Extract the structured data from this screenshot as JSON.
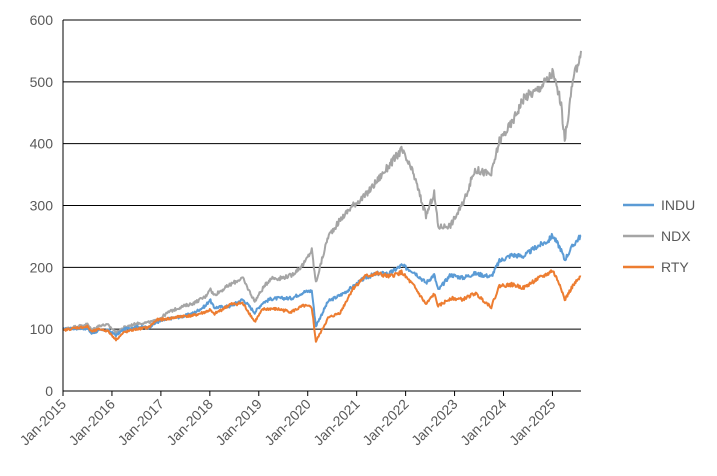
{
  "chart_data": {
    "type": "line",
    "title": "",
    "xlabel": "",
    "ylabel": "",
    "ylim": [
      0,
      600
    ],
    "y_ticks": [
      "0",
      "100",
      "200",
      "300",
      "400",
      "500",
      "600"
    ],
    "x_ticks": [
      "Jan-2015",
      "Jan-2016",
      "Jan-2017",
      "Jan-2018",
      "Jan-2019",
      "Jan-2020",
      "Jan-2021",
      "Jan-2022",
      "Jan-2023",
      "Jan-2024",
      "Jan-2025"
    ],
    "x_range": [
      "2015-01-01",
      "2025-08-01"
    ],
    "grid": "horizontal",
    "legend_position": "right",
    "colors": {
      "INDU": "#5b9bd5",
      "NDX": "#a5a5a5",
      "RTY": "#ed7d31",
      "grid": "#000000",
      "axis_text": "#595959"
    },
    "series": [
      {
        "name": "INDU",
        "points": [
          [
            "2015-01",
            100
          ],
          [
            "2015-04",
            101
          ],
          [
            "2015-07",
            101
          ],
          [
            "2015-08",
            93
          ],
          [
            "2015-10",
            98
          ],
          [
            "2015-12",
            99
          ],
          [
            "2016-02",
            90
          ],
          [
            "2016-04",
            100
          ],
          [
            "2016-07",
            104
          ],
          [
            "2016-10",
            103
          ],
          [
            "2016-12",
            111
          ],
          [
            "2017-03",
            117
          ],
          [
            "2017-06",
            120
          ],
          [
            "2017-09",
            126
          ],
          [
            "2017-12",
            138
          ],
          [
            "2018-01",
            148
          ],
          [
            "2018-02",
            135
          ],
          [
            "2018-06",
            137
          ],
          [
            "2018-09",
            148
          ],
          [
            "2018-10",
            142
          ],
          [
            "2018-12",
            127
          ],
          [
            "2019-02",
            143
          ],
          [
            "2019-04",
            149
          ],
          [
            "2019-06",
            150
          ],
          [
            "2019-09",
            150
          ],
          [
            "2019-12",
            160
          ],
          [
            "2020-02",
            162
          ],
          [
            "2020-03",
            105
          ],
          [
            "2020-06",
            145
          ],
          [
            "2020-09",
            155
          ],
          [
            "2020-12",
            168
          ],
          [
            "2021-03",
            183
          ],
          [
            "2021-06",
            190
          ],
          [
            "2021-09",
            190
          ],
          [
            "2021-12",
            203
          ],
          [
            "2022-03",
            193
          ],
          [
            "2022-06",
            175
          ],
          [
            "2022-08",
            188
          ],
          [
            "2022-09",
            163
          ],
          [
            "2022-12",
            188
          ],
          [
            "2023-03",
            183
          ],
          [
            "2023-06",
            190
          ],
          [
            "2023-10",
            185
          ],
          [
            "2023-12",
            210
          ],
          [
            "2024-03",
            220
          ],
          [
            "2024-06",
            218
          ],
          [
            "2024-09",
            233
          ],
          [
            "2024-12",
            243
          ],
          [
            "2025-01",
            252
          ],
          [
            "2025-03",
            230
          ],
          [
            "2025-04",
            212
          ],
          [
            "2025-06",
            235
          ],
          [
            "2025-08",
            252
          ]
        ]
      },
      {
        "name": "NDX",
        "points": [
          [
            "2015-01",
            100
          ],
          [
            "2015-04",
            104
          ],
          [
            "2015-07",
            108
          ],
          [
            "2015-08",
            99
          ],
          [
            "2015-10",
            106
          ],
          [
            "2015-12",
            107
          ],
          [
            "2016-02",
            95
          ],
          [
            "2016-04",
            103
          ],
          [
            "2016-07",
            109
          ],
          [
            "2016-10",
            111
          ],
          [
            "2016-12",
            114
          ],
          [
            "2017-03",
            128
          ],
          [
            "2017-06",
            136
          ],
          [
            "2017-09",
            142
          ],
          [
            "2017-12",
            153
          ],
          [
            "2018-01",
            166
          ],
          [
            "2018-02",
            155
          ],
          [
            "2018-06",
            172
          ],
          [
            "2018-09",
            183
          ],
          [
            "2018-10",
            170
          ],
          [
            "2018-12",
            145
          ],
          [
            "2019-02",
            166
          ],
          [
            "2019-04",
            183
          ],
          [
            "2019-06",
            182
          ],
          [
            "2019-09",
            187
          ],
          [
            "2019-12",
            205
          ],
          [
            "2020-02",
            228
          ],
          [
            "2020-03",
            175
          ],
          [
            "2020-06",
            250
          ],
          [
            "2020-09",
            277
          ],
          [
            "2020-12",
            300
          ],
          [
            "2021-03",
            315
          ],
          [
            "2021-06",
            340
          ],
          [
            "2021-09",
            365
          ],
          [
            "2021-12",
            390
          ],
          [
            "2022-03",
            350
          ],
          [
            "2022-06",
            283
          ],
          [
            "2022-08",
            320
          ],
          [
            "2022-09",
            265
          ],
          [
            "2022-12",
            268
          ],
          [
            "2023-03",
            302
          ],
          [
            "2023-06",
            358
          ],
          [
            "2023-10",
            350
          ],
          [
            "2023-12",
            405
          ],
          [
            "2024-03",
            433
          ],
          [
            "2024-06",
            475
          ],
          [
            "2024-09",
            485
          ],
          [
            "2024-12",
            505
          ],
          [
            "2025-01",
            515
          ],
          [
            "2025-03",
            470
          ],
          [
            "2025-04",
            405
          ],
          [
            "2025-06",
            500
          ],
          [
            "2025-08",
            550
          ]
        ]
      },
      {
        "name": "RTY",
        "points": [
          [
            "2015-01",
            98
          ],
          [
            "2015-04",
            102
          ],
          [
            "2015-07",
            104
          ],
          [
            "2015-08",
            96
          ],
          [
            "2015-10",
            100
          ],
          [
            "2015-12",
            97
          ],
          [
            "2016-02",
            83
          ],
          [
            "2016-04",
            95
          ],
          [
            "2016-07",
            100
          ],
          [
            "2016-10",
            103
          ],
          [
            "2016-12",
            115
          ],
          [
            "2017-03",
            117
          ],
          [
            "2017-06",
            121
          ],
          [
            "2017-09",
            122
          ],
          [
            "2017-12",
            128
          ],
          [
            "2018-01",
            131
          ],
          [
            "2018-02",
            124
          ],
          [
            "2018-06",
            140
          ],
          [
            "2018-09",
            142
          ],
          [
            "2018-10",
            133
          ],
          [
            "2018-12",
            112
          ],
          [
            "2019-02",
            132
          ],
          [
            "2019-04",
            133
          ],
          [
            "2019-06",
            132
          ],
          [
            "2019-09",
            128
          ],
          [
            "2019-12",
            138
          ],
          [
            "2020-02",
            135
          ],
          [
            "2020-03",
            80
          ],
          [
            "2020-06",
            118
          ],
          [
            "2020-09",
            127
          ],
          [
            "2020-12",
            165
          ],
          [
            "2021-03",
            185
          ],
          [
            "2021-06",
            190
          ],
          [
            "2021-09",
            185
          ],
          [
            "2021-12",
            192
          ],
          [
            "2022-03",
            170
          ],
          [
            "2022-06",
            140
          ],
          [
            "2022-08",
            157
          ],
          [
            "2022-09",
            137
          ],
          [
            "2022-12",
            150
          ],
          [
            "2023-03",
            148
          ],
          [
            "2023-06",
            158
          ],
          [
            "2023-10",
            136
          ],
          [
            "2023-12",
            170
          ],
          [
            "2024-03",
            172
          ],
          [
            "2024-06",
            167
          ],
          [
            "2024-09",
            180
          ],
          [
            "2024-12",
            190
          ],
          [
            "2025-01",
            195
          ],
          [
            "2025-03",
            170
          ],
          [
            "2025-04",
            147
          ],
          [
            "2025-06",
            170
          ],
          [
            "2025-08",
            185
          ]
        ]
      }
    ]
  }
}
